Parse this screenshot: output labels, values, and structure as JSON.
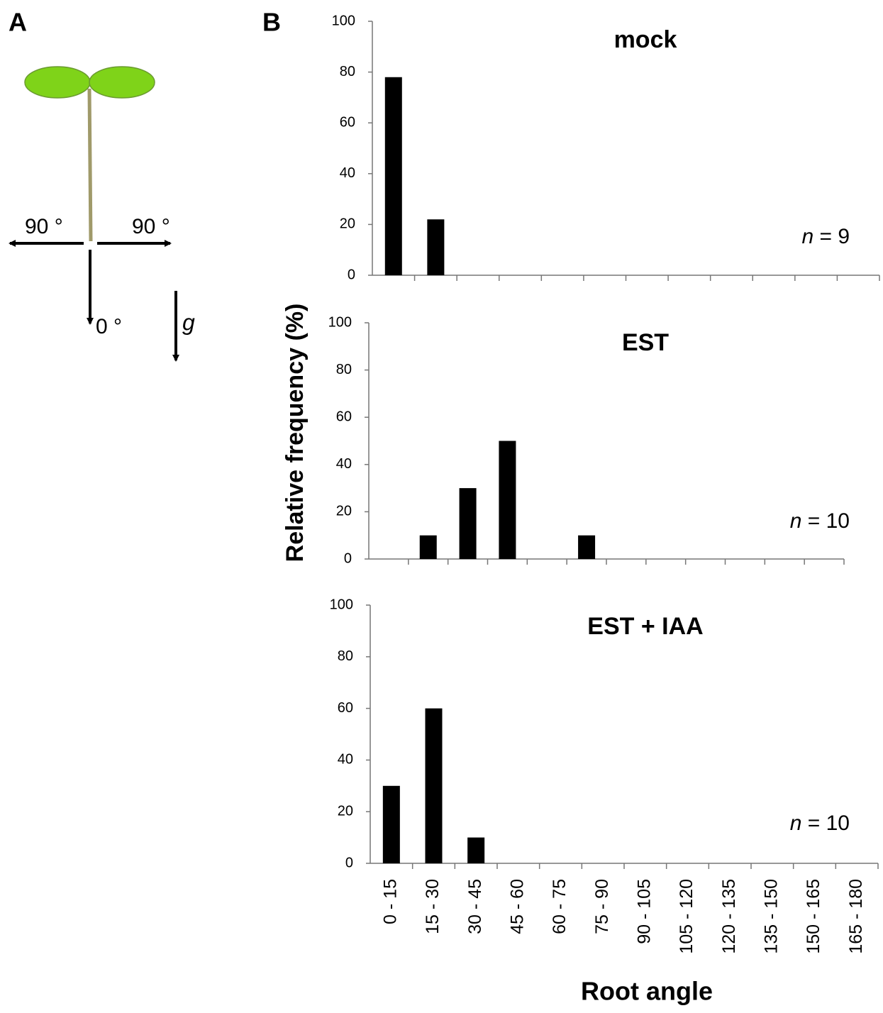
{
  "panel_labels": [
    "A",
    "B"
  ],
  "diagram": {
    "left_angle": "90 °",
    "right_angle": "90 °",
    "bottom_angle": "0 °",
    "gravity": "g"
  },
  "shared_axes": {
    "ylabel": "Relative frequency (%)",
    "xlabel": "Root angle"
  },
  "chart_data": [
    {
      "type": "bar",
      "title": "mock",
      "annotation": "n = 9",
      "color": "#000000",
      "categories": [
        null,
        null,
        null,
        null,
        null,
        null,
        null,
        null,
        null,
        null,
        null,
        null
      ],
      "values": [
        78,
        22,
        0,
        0,
        0,
        0,
        0,
        0,
        0,
        0,
        0,
        0
      ],
      "ylim": [
        0,
        100
      ],
      "yticks": [
        0,
        20,
        40,
        60,
        80,
        100
      ]
    },
    {
      "type": "bar",
      "title": "EST",
      "annotation": "n = 10",
      "color": "#000000",
      "categories": [
        null,
        null,
        null,
        null,
        null,
        null,
        null,
        null,
        null,
        null,
        null,
        null
      ],
      "values": [
        0,
        10,
        30,
        50,
        0,
        10,
        0,
        0,
        0,
        0,
        0,
        0
      ],
      "ylim": [
        0,
        100
      ],
      "yticks": [
        0,
        20,
        40,
        60,
        80,
        100
      ]
    },
    {
      "type": "bar",
      "title": "EST + IAA",
      "annotation": "n = 10",
      "color": "#000000",
      "categories": [
        "0 - 15",
        "15 - 30",
        "30 - 45",
        "45 - 60",
        "60 - 75",
        "75 - 90",
        "90 - 105",
        "105 - 120",
        "120 - 135",
        "135 - 150",
        "150 - 165",
        "165 - 180"
      ],
      "values": [
        30,
        60,
        10,
        0,
        0,
        0,
        0,
        0,
        0,
        0,
        0,
        0
      ],
      "ylim": [
        0,
        100
      ],
      "yticks": [
        0,
        20,
        40,
        60,
        80,
        100
      ]
    }
  ]
}
